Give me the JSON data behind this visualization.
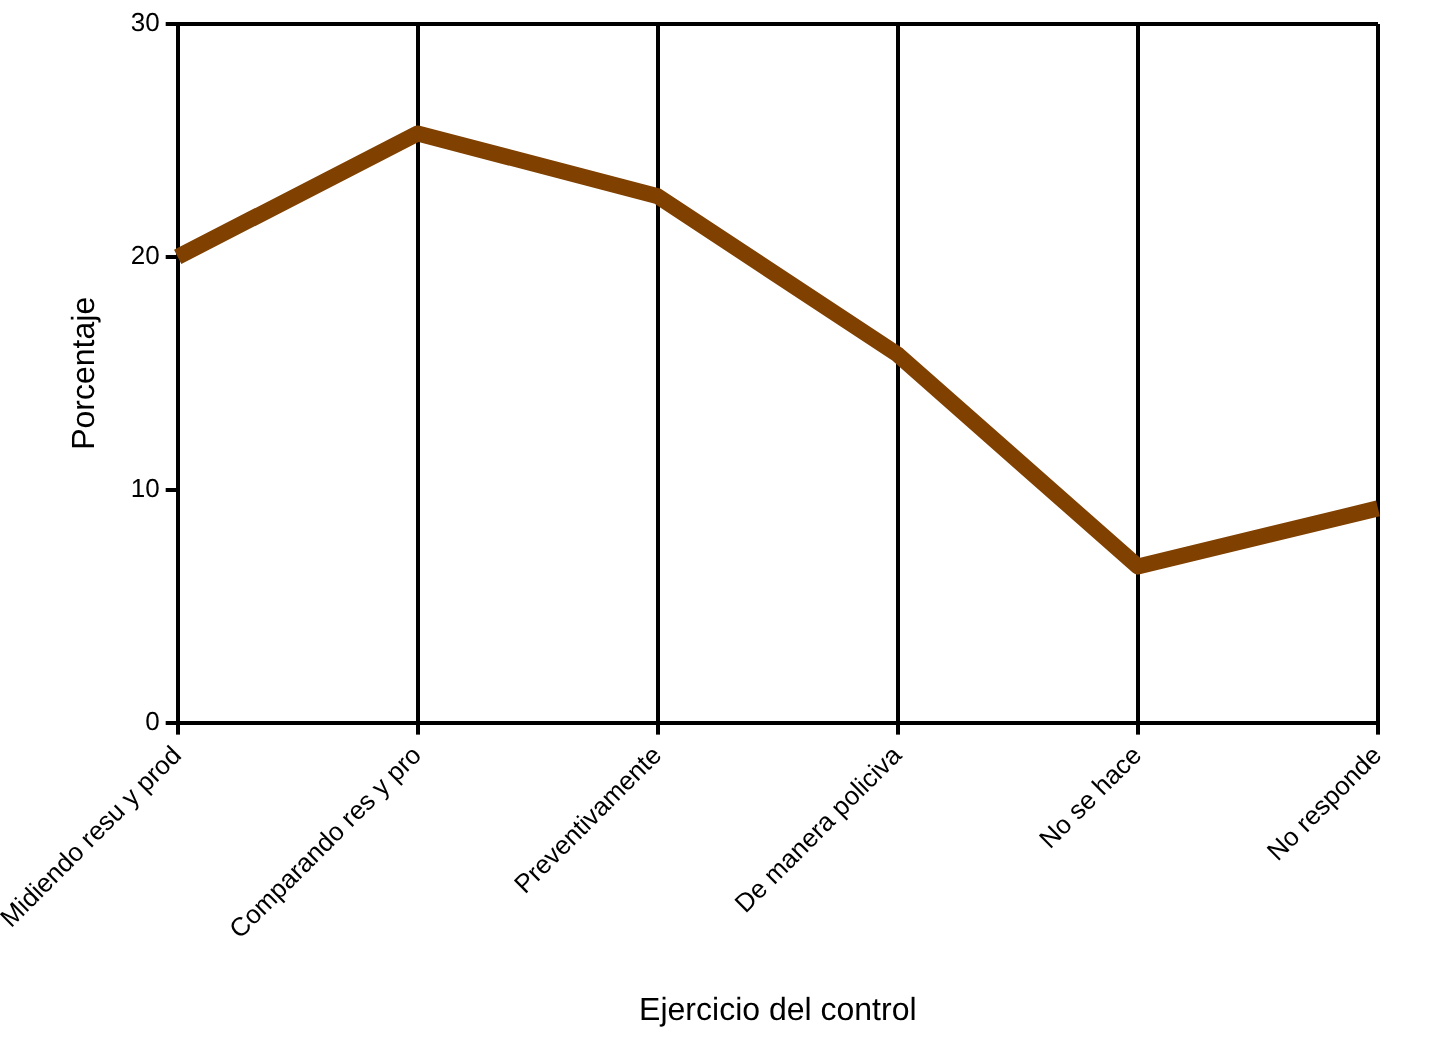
{
  "chart_data": {
    "type": "line",
    "xlabel": "Ejercicio del control",
    "ylabel": "Porcentaje",
    "categories": [
      "Midiendo resu y prod",
      "Comparando res y pro",
      "Preventivamente",
      "De manera policiva",
      "No se hace",
      "No responde"
    ],
    "series": [
      {
        "color": "#804000",
        "values": [
          20,
          25.3,
          22.6,
          15.8,
          6.7,
          9.2
        ]
      }
    ],
    "ylim": [
      0,
      30
    ],
    "yticks": [
      0,
      10,
      20,
      30
    ],
    "grid": "x",
    "legend": false,
    "marker": "none",
    "line_style": "solid"
  }
}
